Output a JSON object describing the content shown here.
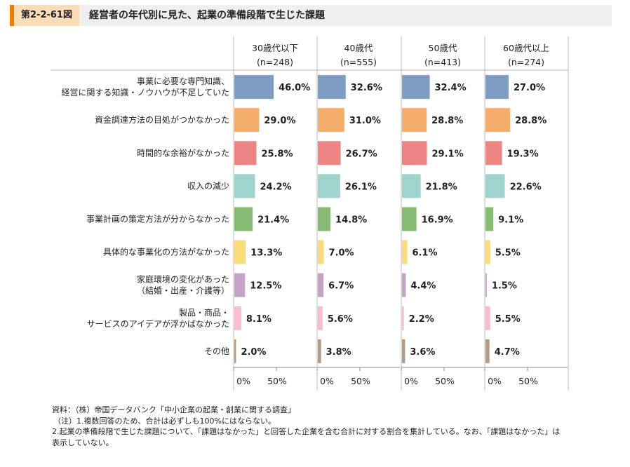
{
  "header": {
    "figure_number": "第2-2-61図",
    "title": "経営者の年代別に見た、起業の準備段階で生じた課題"
  },
  "chart_data": {
    "type": "bar",
    "orientation": "horizontal",
    "categories": [
      "事業に必要な専門知識、\n経営に関する知識・ノウハウが不足していた",
      "資金調達方法の目処がつかなかった",
      "時間的な余裕がなかった",
      "収入の減少",
      "事業計画の策定方法が分からなかった",
      "具体的な事業化の方法がなかった",
      "家庭環境の変化があった\n（結婚・出産・介護等）",
      "製品・商品・\nサービスのアイデアが浮かばなかった",
      "その他"
    ],
    "category_colors": [
      "#7f9dc2",
      "#f5ad6b",
      "#ec8583",
      "#9fd3cd",
      "#87bb74",
      "#f7dc78",
      "#c6a2c9",
      "#f9bdcb",
      "#b49b86"
    ],
    "series": [
      {
        "name": "30歳代以下",
        "n": "(n=248)",
        "values": [
          46.0,
          29.0,
          25.8,
          24.2,
          21.4,
          13.3,
          12.5,
          8.1,
          2.0
        ]
      },
      {
        "name": "40歳代",
        "n": "(n=555)",
        "values": [
          32.6,
          31.0,
          26.7,
          26.1,
          14.8,
          7.0,
          6.7,
          5.6,
          3.8
        ]
      },
      {
        "name": "50歳代",
        "n": "(n=413)",
        "values": [
          32.4,
          28.8,
          29.1,
          21.8,
          16.9,
          6.1,
          4.4,
          2.2,
          3.6
        ]
      },
      {
        "name": "60歳代以上",
        "n": "(n=274)",
        "values": [
          27.0,
          28.8,
          19.3,
          22.6,
          9.1,
          5.5,
          1.5,
          5.5,
          4.7
        ]
      }
    ],
    "x_ticks": [
      "0%",
      "50%"
    ],
    "xlim": [
      0,
      100
    ],
    "data_label_format": "%"
  },
  "notes": [
    "資料：（株）帝国データバンク「中小企業の起業・創業に関する調査」",
    "（注）1.複数回答のため、合計は必ずしも100%にはならない。",
    "2.起業の準備段階で生じた課題について、「課題はなかった」と回答した企業を含む合計に対する割合を集計している。なお、「課題はなかった」は表示していない。"
  ]
}
